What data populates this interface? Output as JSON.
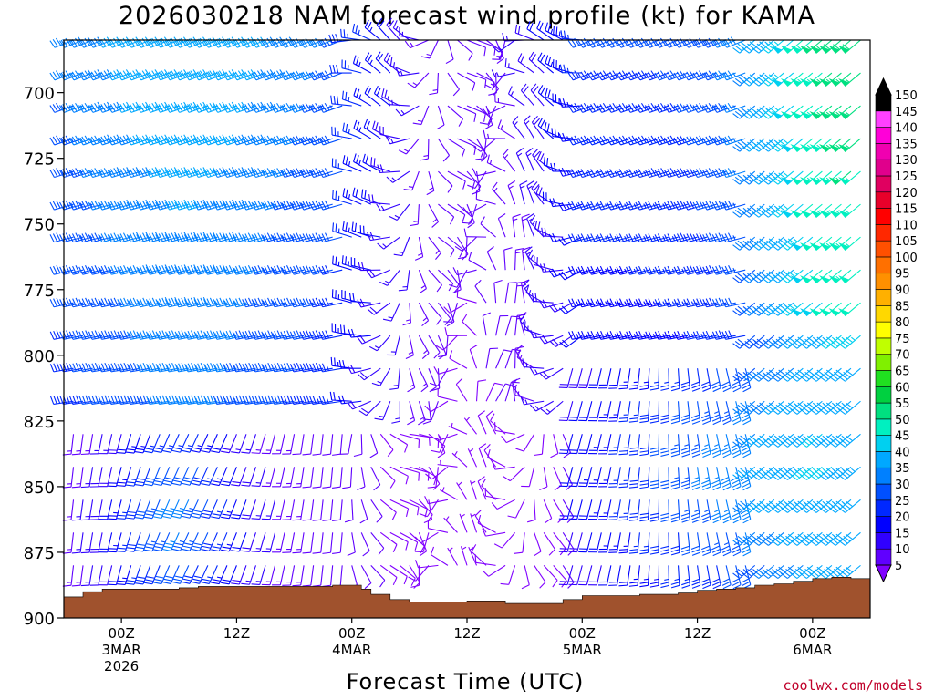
{
  "chart_data": {
    "type": "wind-barb-time-height",
    "title": "2026030218 NAM forecast wind profile (kt) for KAMA",
    "xlabel": "Forecast Time (UTC)",
    "credit": "coolwx.com/models",
    "y_axis": {
      "ticks": [
        700,
        725,
        750,
        775,
        800,
        825,
        850,
        875,
        900
      ],
      "ylim": [
        900,
        680
      ],
      "inverted": true
    },
    "x_axis": {
      "ticks": [
        {
          "hour": 0,
          "lines": [
            "00Z",
            "3MAR",
            "2026"
          ]
        },
        {
          "hour": 12,
          "lines": [
            "12Z"
          ]
        },
        {
          "hour": 24,
          "lines": [
            "00Z",
            "4MAR"
          ]
        },
        {
          "hour": 36,
          "lines": [
            "12Z"
          ]
        },
        {
          "hour": 48,
          "lines": [
            "00Z",
            "5MAR"
          ]
        },
        {
          "hour": 60,
          "lines": [
            "12Z"
          ]
        },
        {
          "hour": 72,
          "lines": [
            "00Z",
            "6MAR"
          ]
        }
      ],
      "xlim": [
        -6,
        78
      ]
    },
    "terrain_color": "#a0522d",
    "colorbar": {
      "levels": [
        5,
        10,
        15,
        20,
        25,
        30,
        35,
        40,
        45,
        50,
        55,
        60,
        65,
        70,
        75,
        80,
        85,
        90,
        95,
        100,
        105,
        110,
        115,
        120,
        125,
        130,
        135,
        140,
        145,
        150
      ],
      "colors": [
        "#8000ff",
        "#6000ff",
        "#3000ff",
        "#0000ff",
        "#0028ff",
        "#0050ff",
        "#0080ff",
        "#00a8ff",
        "#00d0f0",
        "#00f0c0",
        "#00e080",
        "#00d040",
        "#20e020",
        "#80f000",
        "#c0ff00",
        "#ffff00",
        "#ffd800",
        "#ffb000",
        "#ff9000",
        "#ff7000",
        "#ff5000",
        "#ff2800",
        "#ff0000",
        "#e8002a",
        "#e00060",
        "#e0008c",
        "#f000b0",
        "#ff00d8",
        "#ff40ff",
        "#000000"
      ]
    },
    "surface_pressure": [
      {
        "hour": -6,
        "p": 892
      },
      {
        "hour": -4,
        "p": 890
      },
      {
        "hour": -2,
        "p": 889
      },
      {
        "hour": 0,
        "p": 889
      },
      {
        "hour": 2,
        "p": 889
      },
      {
        "hour": 4,
        "p": 889
      },
      {
        "hour": 6,
        "p": 888.5
      },
      {
        "hour": 8,
        "p": 888
      },
      {
        "hour": 10,
        "p": 888
      },
      {
        "hour": 12,
        "p": 888
      },
      {
        "hour": 14,
        "p": 888
      },
      {
        "hour": 16,
        "p": 888
      },
      {
        "hour": 18,
        "p": 888
      },
      {
        "hour": 20,
        "p": 888
      },
      {
        "hour": 22,
        "p": 887.5
      },
      {
        "hour": 24,
        "p": 887.5
      },
      {
        "hour": 25,
        "p": 889
      },
      {
        "hour": 26,
        "p": 891
      },
      {
        "hour": 28,
        "p": 893
      },
      {
        "hour": 30,
        "p": 894
      },
      {
        "hour": 32,
        "p": 894
      },
      {
        "hour": 34,
        "p": 894
      },
      {
        "hour": 36,
        "p": 893.5
      },
      {
        "hour": 38,
        "p": 893.5
      },
      {
        "hour": 40,
        "p": 894.5
      },
      {
        "hour": 42,
        "p": 894.5
      },
      {
        "hour": 44,
        "p": 894.5
      },
      {
        "hour": 46,
        "p": 893
      },
      {
        "hour": 48,
        "p": 891.5
      },
      {
        "hour": 50,
        "p": 891.5
      },
      {
        "hour": 52,
        "p": 891.5
      },
      {
        "hour": 54,
        "p": 891
      },
      {
        "hour": 56,
        "p": 891
      },
      {
        "hour": 58,
        "p": 890.5
      },
      {
        "hour": 60,
        "p": 889.5
      },
      {
        "hour": 62,
        "p": 889
      },
      {
        "hour": 64,
        "p": 888.5
      },
      {
        "hour": 66,
        "p": 887.5
      },
      {
        "hour": 68,
        "p": 887
      },
      {
        "hour": 70,
        "p": 886
      },
      {
        "hour": 72,
        "p": 885
      },
      {
        "hour": 74,
        "p": 884.5
      },
      {
        "hour": 76,
        "p": 885
      },
      {
        "hour": 78,
        "p": 885
      }
    ],
    "wind_barbs": {
      "hours_start": -5,
      "hours_end": 77,
      "hour_step": 1,
      "p_top": 680,
      "p_step": 12.5,
      "features": {
        "upper_jet_peak_kt": 50,
        "lower_jet_peak_kt": 50,
        "low_jet_hours": [
          2,
          10
        ],
        "light_wind_hours": [
          26,
          46
        ],
        "late_jet_hours": [
          64,
          78
        ],
        "late_jet_peak_kt": 55
      }
    }
  }
}
